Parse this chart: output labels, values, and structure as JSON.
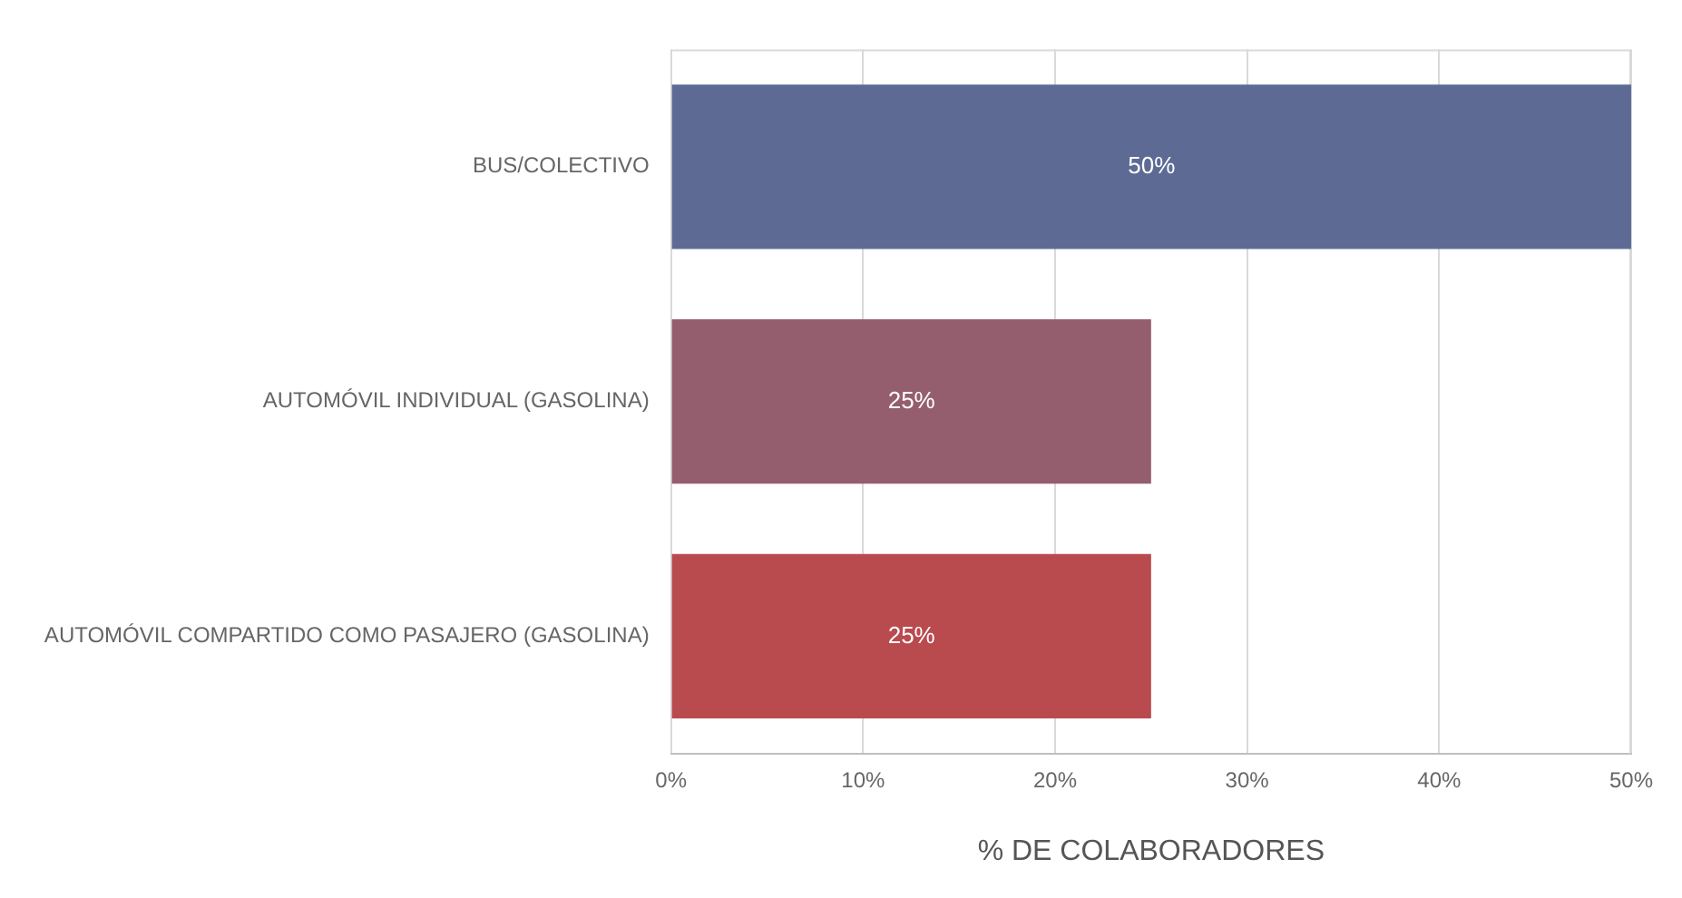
{
  "chart_data": {
    "type": "bar",
    "orientation": "horizontal",
    "xlabel": "% DE COLABORADORES",
    "categories": [
      "BUS/COLECTIVO",
      "AUTOMÓVIL INDIVIDUAL (GASOLINA)",
      "AUTOMÓVIL COMPARTIDO COMO PASAJERO (GASOLINA)"
    ],
    "values": [
      50,
      25,
      25
    ],
    "colors": [
      "#5d6b94",
      "#955e6e",
      "#b94a4e"
    ],
    "value_labels": [
      "50%",
      "25%",
      "25%"
    ],
    "xlim": [
      0,
      50
    ],
    "xticks": [
      {
        "value": 0,
        "label": "0%"
      },
      {
        "value": 10,
        "label": "10%"
      },
      {
        "value": 20,
        "label": "20%"
      },
      {
        "value": 30,
        "label": "30%"
      },
      {
        "value": 40,
        "label": "40%"
      },
      {
        "value": 50,
        "label": "50%"
      }
    ],
    "grid": "x",
    "legend": false
  }
}
